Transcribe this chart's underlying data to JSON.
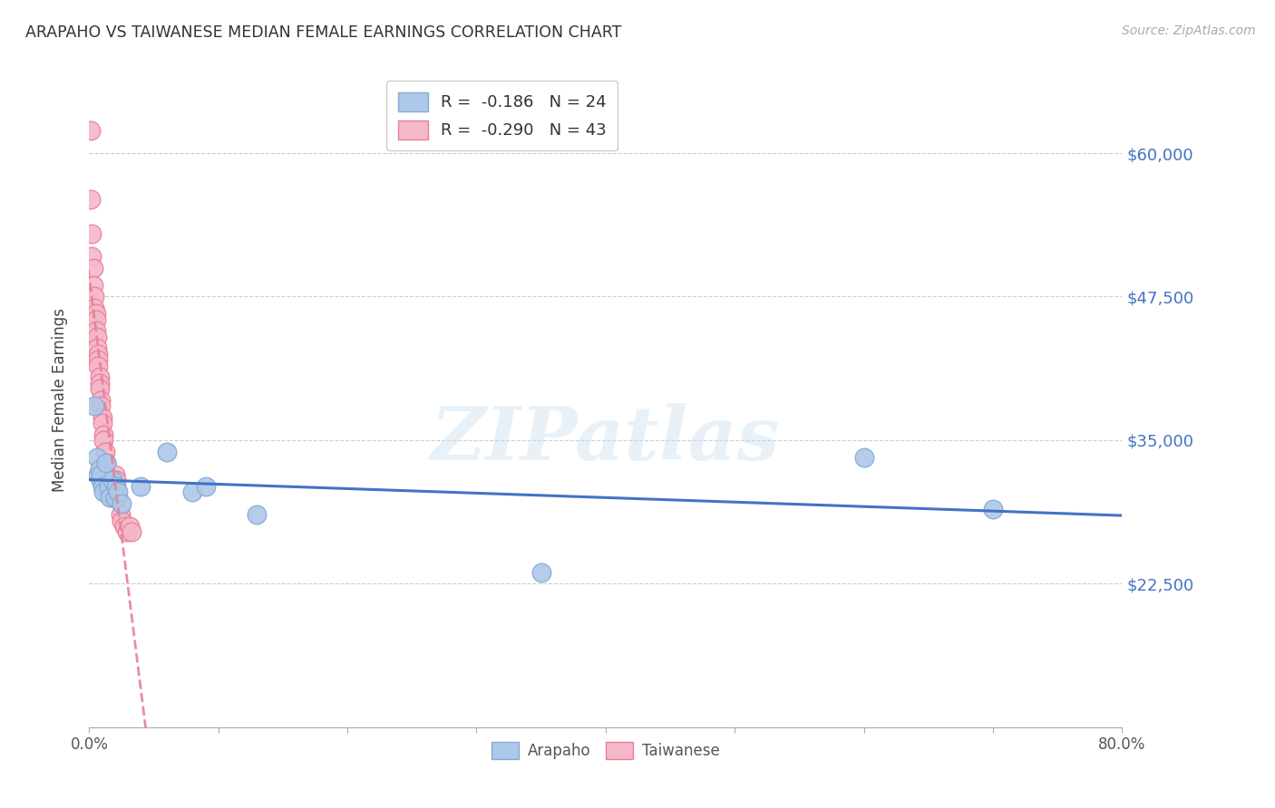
{
  "title": "ARAPAHO VS TAIWANESE MEDIAN FEMALE EARNINGS CORRELATION CHART",
  "source": "Source: ZipAtlas.com",
  "ylabel": "Median Female Earnings",
  "watermark": "ZIPatlas",
  "arapaho_color": "#adc8e8",
  "arapaho_edge_color": "#85aad4",
  "taiwanese_color": "#f5b8c8",
  "taiwanese_edge_color": "#e8809a",
  "trend_arapaho_color": "#4472c4",
  "trend_taiwanese_color": "#e8809a",
  "legend_R_arapaho": "-0.186",
  "legend_N_arapaho": "24",
  "legend_R_taiwanese": "-0.290",
  "legend_N_taiwanese": "43",
  "x_min": 0.0,
  "x_max": 0.8,
  "y_min": 10000,
  "y_max": 67000,
  "y_ticks": [
    22500,
    35000,
    47500,
    60000
  ],
  "y_tick_labels": [
    "$22,500",
    "$35,000",
    "$47,500",
    "$60,000"
  ],
  "x_ticks": [
    0.0,
    0.1,
    0.2,
    0.3,
    0.4,
    0.5,
    0.6,
    0.7,
    0.8
  ],
  "arapaho_x": [
    0.004,
    0.006,
    0.007,
    0.008,
    0.009,
    0.009,
    0.01,
    0.011,
    0.013,
    0.015,
    0.016,
    0.018,
    0.02,
    0.021,
    0.022,
    0.025,
    0.04,
    0.06,
    0.08,
    0.09,
    0.13,
    0.35,
    0.6,
    0.7
  ],
  "arapaho_y": [
    38000,
    33500,
    32000,
    32500,
    31500,
    32000,
    31000,
    30500,
    33000,
    31000,
    30000,
    31500,
    30000,
    31000,
    30500,
    29500,
    31000,
    34000,
    30500,
    31000,
    28500,
    23500,
    33500,
    29000
  ],
  "taiwanese_x": [
    0.001,
    0.001,
    0.002,
    0.002,
    0.003,
    0.003,
    0.004,
    0.004,
    0.005,
    0.005,
    0.005,
    0.006,
    0.006,
    0.007,
    0.007,
    0.007,
    0.008,
    0.008,
    0.008,
    0.009,
    0.009,
    0.01,
    0.01,
    0.011,
    0.011,
    0.012,
    0.013,
    0.013,
    0.014,
    0.015,
    0.016,
    0.017,
    0.018,
    0.019,
    0.02,
    0.021,
    0.022,
    0.024,
    0.025,
    0.027,
    0.029,
    0.031,
    0.033
  ],
  "taiwanese_y": [
    62000,
    56000,
    53000,
    51000,
    50000,
    48500,
    47500,
    46500,
    46000,
    45500,
    44500,
    44000,
    43000,
    42500,
    42000,
    41500,
    40500,
    40000,
    39500,
    38500,
    38000,
    37000,
    36500,
    35500,
    35000,
    34000,
    33000,
    33000,
    32000,
    31500,
    31000,
    30500,
    30000,
    30000,
    32000,
    31500,
    30000,
    28500,
    28000,
    27500,
    27000,
    27500,
    27000
  ]
}
